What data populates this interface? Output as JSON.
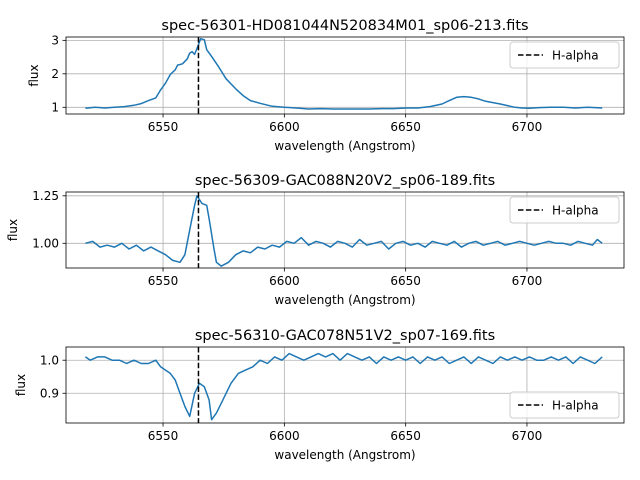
{
  "chart_data": [
    {
      "type": "line",
      "title": "spec-56301-HD081044N520834M01_sp06-213.fits",
      "xlabel": "wavelength (Angstrom)",
      "ylabel": "flux",
      "xlim": [
        6510,
        6740
      ],
      "ylim": [
        0.8,
        3.1
      ],
      "xticks": [
        6550,
        6600,
        6650,
        6700
      ],
      "yticks": [
        1,
        2,
        3
      ],
      "ytick_labels": [
        "1",
        "2",
        "3"
      ],
      "grid": true,
      "legend_position": "top-right",
      "vline": {
        "x": 6564.6,
        "name": "H-alpha",
        "style": "dashed",
        "color": "#000000"
      },
      "series": [
        {
          "color": "#1f77b4",
          "x": [
            6518,
            6522,
            6526,
            6530,
            6534,
            6538,
            6541,
            6544,
            6547,
            6549,
            6551,
            6553,
            6555,
            6556,
            6558,
            6560,
            6561,
            6562,
            6563,
            6564.5,
            6565.5,
            6567,
            6568,
            6570,
            6573,
            6576,
            6580,
            6583,
            6586,
            6590,
            6595,
            6600,
            6605,
            6610,
            6615,
            6620,
            6625,
            6630,
            6635,
            6640,
            6645,
            6650,
            6655,
            6660,
            6665,
            6668,
            6671,
            6674,
            6677,
            6680,
            6683,
            6686,
            6689,
            6692,
            6695,
            6698,
            6701,
            6705,
            6710,
            6715,
            6720,
            6725,
            6731
          ],
          "y": [
            0.97,
            1.0,
            0.98,
            1.0,
            1.02,
            1.06,
            1.11,
            1.2,
            1.28,
            1.52,
            1.72,
            1.98,
            2.12,
            2.26,
            2.3,
            2.45,
            2.62,
            2.66,
            2.58,
            2.85,
            3.05,
            3.02,
            2.72,
            2.52,
            2.2,
            1.85,
            1.55,
            1.35,
            1.2,
            1.12,
            1.03,
            1.0,
            0.98,
            0.95,
            0.96,
            0.95,
            0.95,
            0.95,
            0.95,
            0.96,
            0.96,
            0.98,
            0.98,
            1.02,
            1.1,
            1.2,
            1.3,
            1.32,
            1.3,
            1.25,
            1.18,
            1.14,
            1.1,
            1.05,
            1.0,
            0.98,
            0.97,
            0.99,
            1.0,
            1.0,
            0.98,
            1.0,
            0.98
          ]
        }
      ]
    },
    {
      "type": "line",
      "title": "spec-56309-GAC088N20V2_sp06-189.fits",
      "xlabel": "wavelength (Angstrom)",
      "ylabel": "flux",
      "xlim": [
        6510,
        6740
      ],
      "ylim": [
        0.87,
        1.27
      ],
      "xticks": [
        6550,
        6600,
        6650,
        6700
      ],
      "yticks": [
        1.0,
        1.25
      ],
      "ytick_labels": [
        "1.00",
        "1.25"
      ],
      "grid": true,
      "legend_position": "top-right",
      "vline": {
        "x": 6564.6,
        "name": "H-alpha",
        "style": "dashed",
        "color": "#000000"
      },
      "series": [
        {
          "color": "#1f77b4",
          "x": [
            6518,
            6521,
            6524,
            6527,
            6530,
            6533,
            6536,
            6539,
            6542,
            6545,
            6548,
            6551,
            6554,
            6557,
            6559,
            6561,
            6563,
            6564,
            6566,
            6568,
            6569,
            6571,
            6572,
            6574,
            6577,
            6580,
            6583,
            6586,
            6589,
            6592,
            6595,
            6598,
            6601,
            6604,
            6607,
            6610,
            6613,
            6616,
            6619,
            6622,
            6625,
            6628,
            6631,
            6634,
            6637,
            6640,
            6643,
            6646,
            6649,
            6652,
            6655,
            6658,
            6661,
            6664,
            6667,
            6670,
            6673,
            6676,
            6679,
            6682,
            6685,
            6688,
            6691,
            6694,
            6697,
            6700,
            6703,
            6706,
            6709,
            6712,
            6715,
            6718,
            6721,
            6724,
            6727,
            6729,
            6731
          ],
          "y": [
            1.0,
            1.01,
            0.98,
            0.99,
            0.98,
            1.0,
            0.97,
            0.99,
            0.96,
            0.98,
            0.96,
            0.94,
            0.91,
            0.9,
            0.94,
            1.07,
            1.2,
            1.25,
            1.21,
            1.2,
            1.13,
            0.97,
            0.9,
            0.88,
            0.9,
            0.94,
            0.96,
            0.95,
            0.98,
            0.97,
            0.99,
            0.98,
            1.01,
            1.0,
            1.03,
            0.99,
            1.01,
            1.0,
            0.98,
            1.01,
            1.0,
            0.98,
            1.02,
            0.99,
            1.0,
            1.01,
            0.97,
            1.0,
            1.01,
            0.99,
            1.0,
            0.98,
            1.01,
            1.0,
            0.99,
            1.01,
            0.98,
            1.0,
            1.01,
            0.99,
            1.0,
            1.01,
            0.99,
            1.0,
            1.01,
            1.0,
            0.99,
            1.0,
            1.01,
            1.0,
            1.0,
            0.99,
            1.01,
            1.0,
            0.99,
            1.02,
            1.0
          ]
        }
      ]
    },
    {
      "type": "line",
      "title": "spec-56310-GAC078N51V2_sp07-169.fits",
      "xlabel": "wavelength (Angstrom)",
      "ylabel": "flux",
      "xlim": [
        6510,
        6740
      ],
      "ylim": [
        0.81,
        1.04
      ],
      "xticks": [
        6550,
        6600,
        6650,
        6700
      ],
      "yticks": [
        0.9,
        1.0
      ],
      "ytick_labels": [
        "0.9",
        "1.0"
      ],
      "grid": true,
      "legend_position": "bottom-right",
      "vline": {
        "x": 6564.6,
        "name": "H-alpha",
        "style": "dashed",
        "color": "#000000"
      },
      "series": [
        {
          "color": "#1f77b4",
          "x": [
            6518,
            6520,
            6523,
            6526,
            6529,
            6532,
            6535,
            6538,
            6541,
            6544,
            6547,
            6549,
            6551,
            6553,
            6555,
            6557,
            6559,
            6561,
            6563,
            6565,
            6567,
            6569,
            6570,
            6572,
            6574,
            6576,
            6578,
            6581,
            6584,
            6587,
            6590,
            6593,
            6596,
            6599,
            6602,
            6605,
            6608,
            6611,
            6614,
            6617,
            6620,
            6623,
            6626,
            6629,
            6632,
            6635,
            6638,
            6641,
            6644,
            6647,
            6650,
            6653,
            6656,
            6659,
            6662,
            6665,
            6668,
            6671,
            6674,
            6677,
            6680,
            6683,
            6686,
            6689,
            6692,
            6695,
            6698,
            6701,
            6704,
            6707,
            6710,
            6713,
            6716,
            6719,
            6722,
            6725,
            6728,
            6731
          ],
          "y": [
            1.01,
            1.0,
            1.01,
            1.01,
            1.0,
            1.0,
            0.99,
            1.0,
            0.99,
            0.99,
            1.0,
            0.98,
            0.97,
            0.96,
            0.94,
            0.9,
            0.86,
            0.83,
            0.9,
            0.93,
            0.92,
            0.88,
            0.82,
            0.84,
            0.87,
            0.9,
            0.93,
            0.96,
            0.97,
            0.98,
            1.0,
            0.99,
            1.01,
            1.0,
            1.02,
            1.01,
            1.0,
            1.01,
            1.02,
            1.01,
            1.02,
            1.0,
            1.02,
            1.01,
            1.0,
            1.01,
            0.99,
            1.01,
            1.0,
            1.01,
            1.0,
            1.01,
            0.99,
            1.01,
            1.0,
            1.01,
            0.99,
            1.0,
            1.01,
            0.99,
            1.01,
            1.0,
            0.99,
            1.01,
            1.0,
            1.01,
            1.0,
            1.01,
            1.0,
            1.0,
            1.01,
            1.0,
            1.01,
            0.99,
            1.01,
            1.0,
            0.99,
            1.01
          ]
        }
      ]
    }
  ]
}
